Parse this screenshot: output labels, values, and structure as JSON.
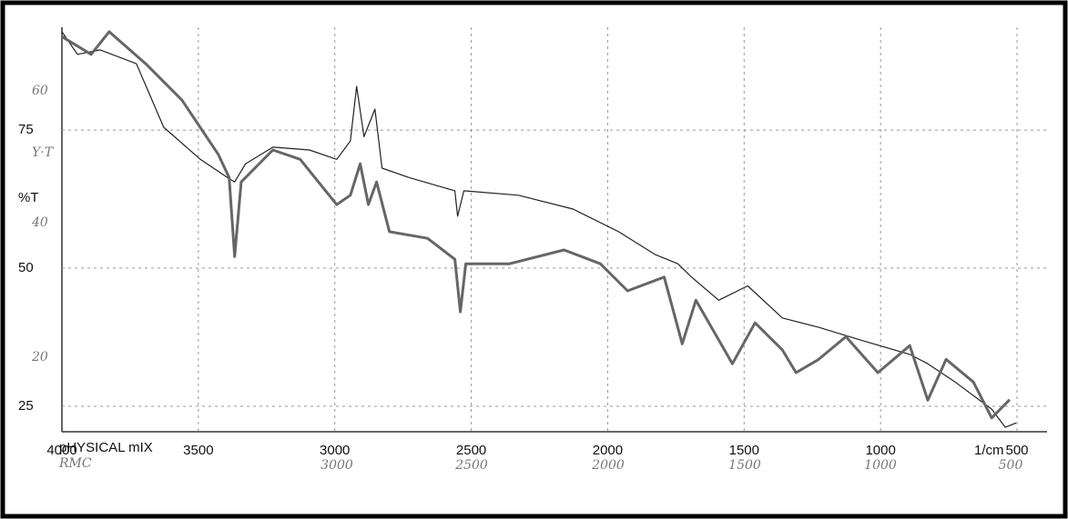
{
  "chart_data": {
    "type": "line",
    "y_label": "%T",
    "x_label": "1/cm",
    "annotations": [
      "60",
      "Y·T",
      "40",
      "20",
      "pHYSICAL mIX",
      "RMC",
      "3000",
      "2500",
      "2000",
      "1500",
      "1000",
      "500"
    ],
    "xlim": [
      4000,
      390
    ],
    "ylim": [
      20.4,
      93.6
    ],
    "xticks": [
      4000,
      3500,
      3000,
      2500,
      2000,
      1500,
      1000,
      500
    ],
    "yticks": [
      25,
      50,
      75
    ],
    "grid": true,
    "series": [
      {
        "color": "#222222",
        "x": [
          4000,
          3943,
          3860,
          3727,
          3627,
          3493,
          3393,
          3367,
          3327,
          3227,
          3093,
          2993,
          2943,
          2920,
          2893,
          2853,
          2827,
          2727,
          2560,
          2550,
          2527,
          2327,
          2127,
          1960,
          1827,
          1743,
          1693,
          1593,
          1487,
          1360,
          1227,
          1060,
          893,
          827,
          727,
          593,
          543,
          503
        ],
        "values": [
          92.8,
          88.7,
          89.5,
          87,
          75.5,
          69.7,
          66.4,
          65.6,
          68.9,
          71.9,
          71.4,
          69.7,
          73,
          82.9,
          73.8,
          78.8,
          68.1,
          66.4,
          64,
          59.4,
          64,
          63.2,
          60.7,
          56.6,
          52.5,
          50.8,
          48.4,
          44.2,
          46.8,
          41,
          39.3,
          36.8,
          34.4,
          32.7,
          29.4,
          24.5,
          21.2,
          22
        ]
      },
      {
        "color": "#666666",
        "x": [
          4000,
          3893,
          3827,
          3693,
          3560,
          3427,
          3387,
          3367,
          3343,
          3227,
          3127,
          2993,
          2943,
          2907,
          2877,
          2847,
          2800,
          2660,
          2560,
          2540,
          2520,
          2360,
          2160,
          2027,
          1927,
          1793,
          1727,
          1677,
          1543,
          1460,
          1360,
          1310,
          1227,
          1127,
          1010,
          893,
          827,
          760,
          660,
          593,
          527
        ],
        "values": [
          91.9,
          88.7,
          92.8,
          87,
          80.4,
          70.6,
          66.4,
          52.1,
          65.6,
          71.4,
          69.7,
          61.5,
          63.2,
          68.9,
          61.5,
          65.6,
          56.6,
          55.4,
          51.6,
          42.1,
          50.8,
          50.8,
          53.3,
          50.8,
          45.9,
          48.4,
          36.3,
          44.2,
          32.7,
          40.1,
          35.2,
          31.1,
          33.5,
          37.6,
          31.1,
          36,
          26.1,
          33.5,
          29.4,
          22.9,
          26.2
        ]
      }
    ]
  }
}
